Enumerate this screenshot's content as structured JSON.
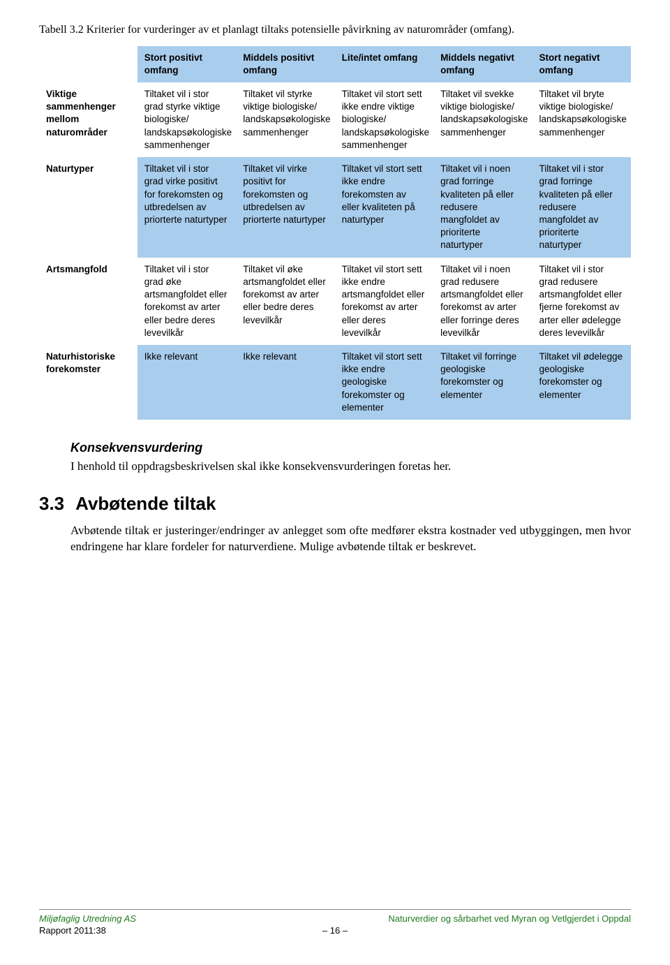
{
  "caption": "Tabell 3.2 Kriterier for vurderinger av et planlagt tiltaks potensielle påvirkning av naturområder (omfang).",
  "table": {
    "headers": [
      "",
      "Stort positivt omfang",
      "Middels positivt omfang",
      "Lite/intet omfang",
      "Middels negativt omfang",
      "Stort negativt omfang"
    ],
    "rows": [
      {
        "head": "Viktige sammenhenger mellom naturområder",
        "cells": [
          "Tiltaket vil i stor grad styrke viktige biologiske/ landskapsøkologiske sammenhenger",
          "Tiltaket vil styrke viktige biologiske/ landskapsøkologiske sammenhenger",
          "Tiltaket vil stort sett ikke endre viktige biologiske/ landskapsøkologiske sammenhenger",
          "Tiltaket vil svekke viktige biologiske/ landskapsøkologiske sammenhenger",
          "Tiltaket vil bryte viktige biologiske/ landskapsøkologiske sammenhenger"
        ]
      },
      {
        "head": "Naturtyper",
        "cells": [
          "Tiltaket vil i stor grad virke positivt for forekomsten og utbredelsen av priorterte naturtyper",
          "Tiltaket vil virke positivt for forekomsten og utbredelsen av priorterte naturtyper",
          "Tiltaket vil stort sett ikke endre forekomsten av eller kvaliteten på naturtyper",
          "Tiltaket vil i noen grad forringe kvaliteten på eller redusere mangfoldet av prioriterte naturtyper",
          "Tiltaket vil i stor grad forringe kvaliteten på eller redusere mangfoldet av prioriterte naturtyper"
        ]
      },
      {
        "head": "Artsmangfold",
        "cells": [
          "Tiltaket vil i stor grad øke artsmangfoldet eller forekomst av arter eller bedre deres levevilkår",
          "Tiltaket vil øke artsmangfoldet eller forekomst av arter eller bedre deres levevilkår",
          "Tiltaket vil stort sett ikke endre artsmangfoldet eller forekomst av arter eller deres levevilkår",
          "Tiltaket vil i noen grad redusere artsmangfoldet eller forekomst av arter eller forringe deres levevilkår",
          "Tiltaket vil i stor grad redusere artsmangfoldet eller fjerne forekomst av arter eller ødelegge deres levevilkår"
        ]
      },
      {
        "head": "Naturhistoriske forekomster",
        "cells": [
          "Ikke relevant",
          "Ikke relevant",
          "Tiltaket vil stort sett ikke endre geologiske forekomster og elementer",
          "Tiltaket vil forringe geologiske forekomster og elementer",
          "Tiltaket vil ødelegge geologiske forekomster og elementer"
        ]
      }
    ]
  },
  "konsekvens": {
    "heading": "Konsekvensvurdering",
    "text": "I henhold til oppdragsbeskrivelsen skal ikke konsekvensvurderingen foretas her."
  },
  "sec33": {
    "num": "3.3",
    "title": "Avbøtende tiltak",
    "text": "Avbøtende tiltak er justeringer/endringer av anlegget som ofte medfører ekstra kostnader ved utbyggingen, men hvor endringene har klare fordeler for naturverdiene. Mulige avbøtende tiltak er beskrevet."
  },
  "footer": {
    "leftTop": "Miljøfaglig Utredning AS",
    "rightTop": "Naturverdier og sårbarhet ved Myran og Vetlgjerdet i Oppdal",
    "leftBottom": "Rapport 2011:38",
    "pageNum": "– 16 –"
  }
}
